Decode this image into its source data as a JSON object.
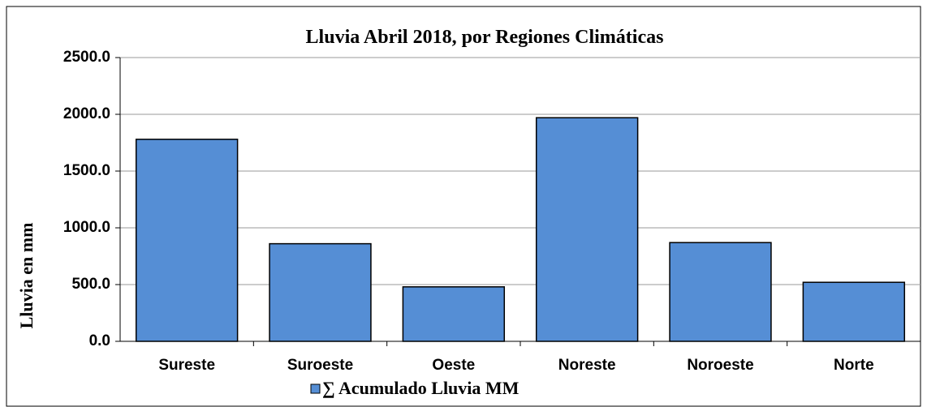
{
  "chart_data": {
    "type": "bar",
    "title": "Lluvia Abril 2018, por Regiones Climáticas",
    "y_label": "Lluvia  en mm",
    "categories": [
      "Sureste",
      "Suroeste",
      "Oeste",
      "Noreste",
      "Noroeste",
      "Norte"
    ],
    "series": [
      {
        "name": "∑ Acumulado Lluvia  MM",
        "color": "#558ed5",
        "values": [
          1780,
          860,
          480,
          1970,
          870,
          520
        ]
      }
    ],
    "ylim": [
      0,
      2500
    ],
    "yticks": [
      {
        "value": 0,
        "label": "0.0"
      },
      {
        "value": 500,
        "label": "500.0"
      },
      {
        "value": 1000,
        "label": "1000.0"
      },
      {
        "value": 1500,
        "label": "1500.0"
      },
      {
        "value": 2000,
        "label": "2000.0"
      },
      {
        "value": 2500,
        "label": "2500.0"
      }
    ],
    "grid": true,
    "legend": "bottom"
  }
}
